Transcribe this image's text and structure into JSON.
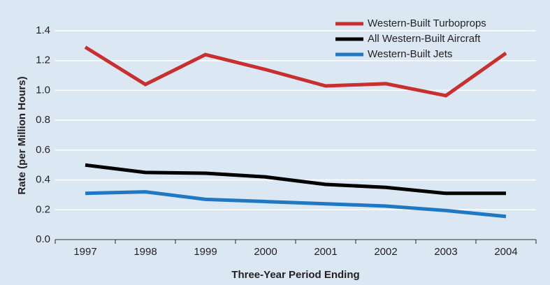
{
  "chart_data": {
    "type": "line",
    "x_label": "Three-Year Period Ending",
    "y_label": "Rate (per Million Hours)",
    "categories": [
      "1997",
      "1998",
      "1999",
      "2000",
      "2001",
      "2002",
      "2003",
      "2004"
    ],
    "series": [
      {
        "name": "Western-Built Turboprops",
        "color": "#c8302f",
        "values": [
          1.29,
          1.04,
          1.24,
          1.14,
          1.03,
          1.045,
          0.965,
          1.25
        ]
      },
      {
        "name": "All Western-Built Aircraft",
        "color": "#000000",
        "values": [
          0.5,
          0.45,
          0.445,
          0.42,
          0.37,
          0.35,
          0.31,
          0.31
        ]
      },
      {
        "name": "Western-Built Jets",
        "color": "#1f78c1",
        "values": [
          0.31,
          0.32,
          0.27,
          0.255,
          0.24,
          0.225,
          0.195,
          0.155
        ]
      }
    ],
    "ylim": [
      0,
      1.4
    ],
    "yticks": [
      {
        "value": 0,
        "label": "0.0"
      },
      0.2,
      0.4,
      0.6,
      0.8,
      {
        "value": 1,
        "label": "1.0"
      },
      1.2,
      1.4
    ],
    "grid": true,
    "legend": "top-right"
  }
}
